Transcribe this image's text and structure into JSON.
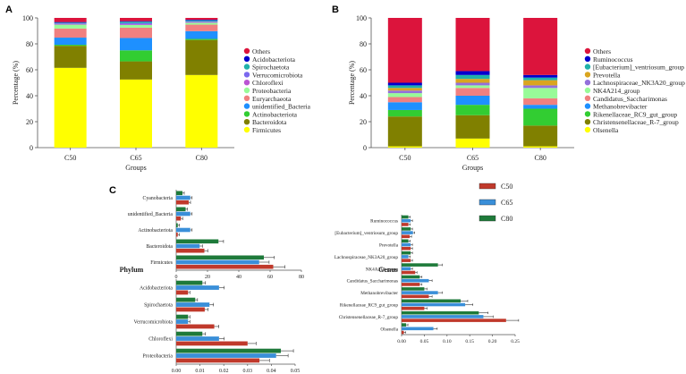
{
  "colors": {
    "Others": "#dc143c",
    "Acidobacteriota": "#0000cd",
    "Spirochaetota": "#20b2aa",
    "Verrucomicrobiota": "#7b68ee",
    "Chloroflexi": "#ba55d3",
    "Proteobacteria": "#98fb98",
    "Euryarchaeota": "#f08080",
    "unidentified_Bacteria": "#1e90ff",
    "Actinobacteriota": "#32cd32",
    "Bacteroidota": "#808000",
    "Firmicutes": "#ffff00",
    "Ruminococcus": "#0000cd",
    "[Eubacterium]_ventriosum_group": "#20b2aa",
    "Prevotella": "#daa520",
    "Lachnospiraceae_NK3A20_group": "#9370db",
    "NK4A214_group": "#98fb98",
    "Candidatus_Saccharimonas": "#f08080",
    "Methanobrevibacter": "#1e90ff",
    "Rikenellaceae_RC9_gut_group": "#32cd32",
    "Christensenellaceae_R-7_group": "#808000",
    "Olsenella": "#ffff00",
    "C50": "#c0392b",
    "C65": "#3a8fd9",
    "C80": "#1e7a3a"
  },
  "chart_data": [
    {
      "panel": "A",
      "type": "bar",
      "stacked": true,
      "categories": [
        "C50",
        "C65",
        "C80"
      ],
      "xlabel": "Groups",
      "ylabel": "Percentage (%)",
      "ylim": [
        0,
        100
      ],
      "yticks": [
        "0",
        "20",
        "40",
        "60",
        "80",
        "100"
      ],
      "series": [
        {
          "name": "Firmicutes",
          "values": [
            61.5,
            52.5,
            56
          ]
        },
        {
          "name": "Bacteroidota",
          "values": [
            17,
            14,
            27
          ]
        },
        {
          "name": "Actinobacteriota",
          "values": [
            0.8,
            8.5,
            0.8
          ]
        },
        {
          "name": "unidentified_Bacteria",
          "values": [
            5.5,
            9.5,
            6
          ]
        },
        {
          "name": "Euryarchaeota",
          "values": [
            7,
            8,
            5
          ]
        },
        {
          "name": "Proteobacteria",
          "values": [
            3,
            2,
            1.5
          ]
        },
        {
          "name": "Chloroflexi",
          "values": [
            0.5,
            0.5,
            0.5
          ]
        },
        {
          "name": "Verrucomicrobiota",
          "values": [
            0.5,
            1,
            0.5
          ]
        },
        {
          "name": "Spirochaetota",
          "values": [
            0.5,
            1,
            0.8
          ]
        },
        {
          "name": "Acidobacteriota",
          "values": [
            0.5,
            0.5,
            0.5
          ]
        },
        {
          "name": "Others",
          "values": [
            3.2,
            2.5,
            1.4
          ]
        }
      ],
      "legend_order": [
        "Others",
        "Acidobacteriota",
        "Spirochaetota",
        "Verrucomicrobiota",
        "Chloroflexi",
        "Proteobacteria",
        "Euryarchaeota",
        "unidentified_Bacteria",
        "Actinobacteriota",
        "Bacteroidota",
        "Firmicutes"
      ],
      "legend_labels": [
        "Others",
        "Acidobacteriota",
        "Spirochaetota",
        "Verrucomicrobiota",
        "Chloroflexi",
        "Proteobacteria",
        "Euryarchaeota",
        "unidentified_Bacteria",
        "Actinobacteriota",
        "Bacteroidota",
        "Firmicutes"
      ]
    },
    {
      "panel": "B",
      "type": "bar",
      "stacked": true,
      "categories": [
        "C50",
        "C65",
        "C80"
      ],
      "xlabel": "Groups",
      "ylabel": "Percentage (%)",
      "ylim": [
        0,
        100
      ],
      "yticks": [
        "0",
        "20",
        "40",
        "60",
        "80",
        "100"
      ],
      "series": [
        {
          "name": "Olsenella",
          "values": [
            1,
            7,
            1
          ]
        },
        {
          "name": "Christensenellaceae_R-7_group",
          "values": [
            23,
            18,
            16
          ]
        },
        {
          "name": "Rikenellaceae_RC9_gut_group",
          "values": [
            5,
            8,
            13
          ]
        },
        {
          "name": "Methanobrevibacter",
          "values": [
            6,
            7,
            3
          ]
        },
        {
          "name": "Candidatus_Saccharimonas",
          "values": [
            4,
            6,
            5
          ]
        },
        {
          "name": "NK4A214_group",
          "values": [
            3,
            2,
            8
          ]
        },
        {
          "name": "Lachnospiraceae_NK3A20_group",
          "values": [
            2,
            2,
            2
          ]
        },
        {
          "name": "Prevotella",
          "values": [
            2,
            3,
            4
          ]
        },
        {
          "name": "[Eubacterium]_ventriosum_group",
          "values": [
            2,
            3,
            2
          ]
        },
        {
          "name": "Ruminococcus",
          "values": [
            2,
            3,
            2
          ]
        },
        {
          "name": "Others",
          "values": [
            50,
            41,
            44
          ]
        }
      ],
      "legend_order": [
        "Others",
        "Ruminococcus",
        "[Eubacterium]_ventriosum_group",
        "Prevotella",
        "Lachnospiraceae_NK3A20_group",
        "NK4A214_group",
        "Candidatus_Saccharimonas",
        "Methanobrevibacter",
        "Rikenellaceae_RC9_gut_group",
        "Christensenellaceae_R-7_group",
        "Olsenella"
      ],
      "legend_labels": [
        "Others",
        "Ruminococcus",
        "[Eubacterium]_ventriosum_group",
        "Prevotella",
        "Lachnospiraceae_NK3A20_group",
        "NK4A214_group",
        "Candidatus_Saccharimonas",
        "Methanobrevibacter",
        "Rikenellaceae_RC9_gut_group",
        "Christensenellaceae_R-7_group",
        "Olsenella"
      ]
    },
    {
      "panel": "C-phylum-top",
      "type": "bar",
      "orientation": "horizontal",
      "title": "Phylum",
      "categories": [
        "Cyanobacteria",
        "unidentified_Bacteria",
        "Actinobacteriota",
        "Bacteroidota",
        "Firmicutes"
      ],
      "series": [
        {
          "name": "C50",
          "values": [
            8,
            3,
            1,
            18,
            62
          ]
        },
        {
          "name": "C65",
          "values": [
            9,
            9,
            9,
            15,
            53
          ]
        },
        {
          "name": "C80",
          "values": [
            4,
            6,
            1,
            27,
            56
          ]
        }
      ],
      "xlim": [
        0,
        80
      ],
      "xticks": [
        "0",
        "20",
        "40",
        "60",
        "80"
      ]
    },
    {
      "panel": "C-phylum-bottom",
      "type": "bar",
      "orientation": "horizontal",
      "categories": [
        "Acidobacteriota",
        "Spirochaetota",
        "Verrucomicrobiota",
        "Chloroflexi",
        "Proteobacteria"
      ],
      "series": [
        {
          "name": "C50",
          "values": [
            0.005,
            0.012,
            0.016,
            0.03,
            0.035
          ]
        },
        {
          "name": "C65",
          "values": [
            0.018,
            0.014,
            0.005,
            0.018,
            0.042
          ]
        },
        {
          "name": "C80",
          "values": [
            0.011,
            0.008,
            0.005,
            0.011,
            0.044
          ]
        }
      ],
      "xlim": [
        0,
        0.05
      ],
      "xticks": [
        "0.00",
        "0.01",
        "0.02",
        "0.03",
        "0.04",
        "0.05"
      ]
    },
    {
      "panel": "C-genus",
      "type": "bar",
      "orientation": "horizontal",
      "title": "Genus",
      "categories": [
        "Ruminococcus",
        "[Eubacterium]_ventriosum_group",
        "Prevotella",
        "Lachnospiraceae_NK3A20_group",
        "NK4A214_group",
        "Candidatus_Saccharimonas",
        "Methanobrevibacter",
        "Rikenellaceae_RC9_gut_group",
        "Christensenellaceae_R-7_group",
        "Olsenella"
      ],
      "series": [
        {
          "name": "C50",
          "values": [
            0.015,
            0.018,
            0.02,
            0.02,
            0.03,
            0.04,
            0.06,
            0.05,
            0.23,
            0.005
          ]
        },
        {
          "name": "C65",
          "values": [
            0.02,
            0.025,
            0.02,
            0.015,
            0.02,
            0.06,
            0.08,
            0.14,
            0.18,
            0.07
          ]
        },
        {
          "name": "C80",
          "values": [
            0.015,
            0.02,
            0.015,
            0.02,
            0.08,
            0.04,
            0.05,
            0.13,
            0.17,
            0.01
          ]
        }
      ],
      "xlim": [
        0,
        0.25
      ],
      "xticks": [
        "0.00",
        "0.05",
        "0.10",
        "0.15",
        "0.20",
        "0.25"
      ]
    }
  ],
  "panel_labels": {
    "a": "A",
    "b": "B",
    "c": "C"
  },
  "c_legend": [
    "C50",
    "C65",
    "C80"
  ]
}
